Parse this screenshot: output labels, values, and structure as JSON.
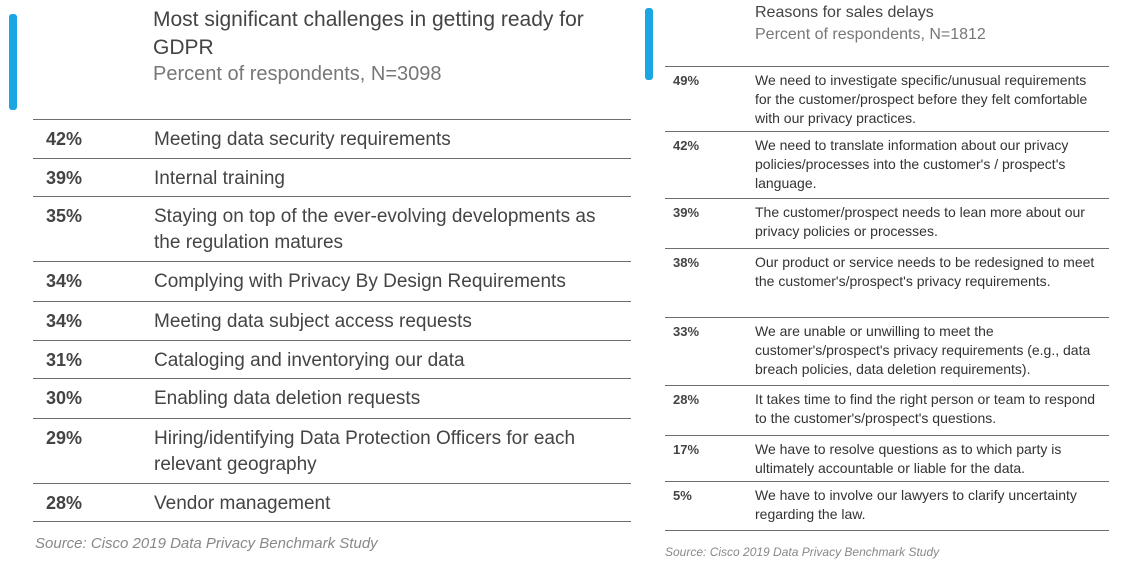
{
  "chart_data": [
    {
      "type": "table",
      "title": "Most significant challenges in getting ready for GDPR",
      "subtitle": "Percent of respondents, N=3098",
      "rows": [
        {
          "value": "42%",
          "label": "Meeting data security requirements"
        },
        {
          "value": "39%",
          "label": "Internal training"
        },
        {
          "value": "35%",
          "label": "Staying on top of the ever-evolving developments as the regulation matures"
        },
        {
          "value": "34%",
          "label": "Complying with Privacy By Design Requirements"
        },
        {
          "value": "34%",
          "label": "Meeting data subject access requests"
        },
        {
          "value": "31%",
          "label": "Cataloging and inventorying our data"
        },
        {
          "value": "30%",
          "label": "Enabling data deletion requests"
        },
        {
          "value": "29%",
          "label": "Hiring/identifying Data Protection Officers for each relevant geography"
        },
        {
          "value": "28%",
          "label": "Vendor management"
        }
      ],
      "source": "Source: Cisco 2019 Data Privacy Benchmark Study"
    },
    {
      "type": "table",
      "title": "Reasons for sales delays",
      "subtitle": "Percent of respondents, N=1812",
      "rows": [
        {
          "value": "49%",
          "label": "We need to investigate specific/unusual requirements for the customer/prospect before they felt comfortable with our privacy practices."
        },
        {
          "value": "42%",
          "label": "We need to translate information about our privacy policies/processes into the customer's / prospect's language."
        },
        {
          "value": "39%",
          "label": "The customer/prospect needs to lean more about our privacy policies or processes."
        },
        {
          "value": "38%",
          "label": "Our product or service needs to be redesigned to meet the customer's/prospect's privacy requirements."
        },
        {
          "value": "33%",
          "label": "We are unable or unwilling to meet the customer's/prospect's privacy requirements (e.g., data breach policies, data deletion requirements)."
        },
        {
          "value": "28%",
          "label": "It takes time to find the right person or team to respond to the customer's/prospect's questions."
        },
        {
          "value": "17%",
          "label": "We have to resolve questions as to which party is ultimately accountable or liable for the data."
        },
        {
          "value": "5%",
          "label": "We have to involve our lawyers to clarify uncertainty regarding the law."
        }
      ],
      "source": "Source: Cisco 2019 Data Privacy Benchmark Study"
    }
  ],
  "colors": {
    "accent": "#1aa6e0",
    "text": "#444444",
    "rule": "#6e6e6e"
  }
}
